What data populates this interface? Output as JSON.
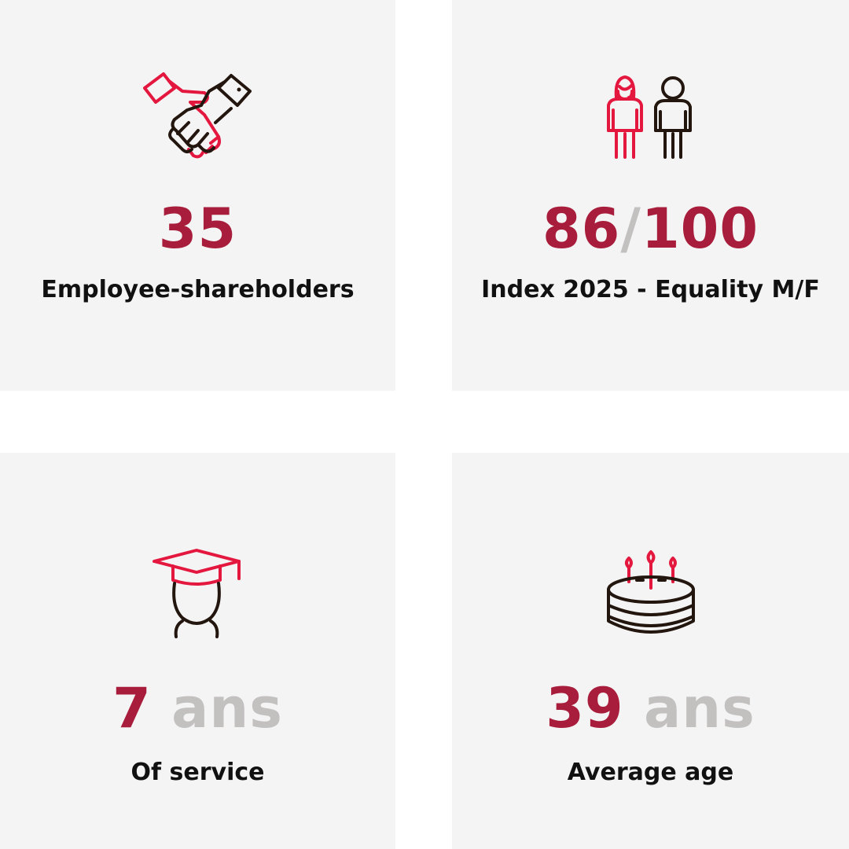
{
  "colors": {
    "accent": "#a81d3c",
    "muted": "#c3c0c0",
    "icon_red": "#e4173f",
    "icon_dark": "#23160f",
    "card_bg": "#f5f4f4"
  },
  "stats": [
    {
      "icon": "handshake-icon",
      "value": "35",
      "label": "Employee-shareholders"
    },
    {
      "icon": "woman-man-icon",
      "value": "86",
      "separator": "/",
      "value_total": "100",
      "label": "Index 2025 - Equality M/F"
    },
    {
      "icon": "graduate-icon",
      "value": "7",
      "unit": "ans",
      "label": "Of service"
    },
    {
      "icon": "birthday-cake-icon",
      "value": "39",
      "unit": "ans",
      "label": "Average age"
    }
  ]
}
